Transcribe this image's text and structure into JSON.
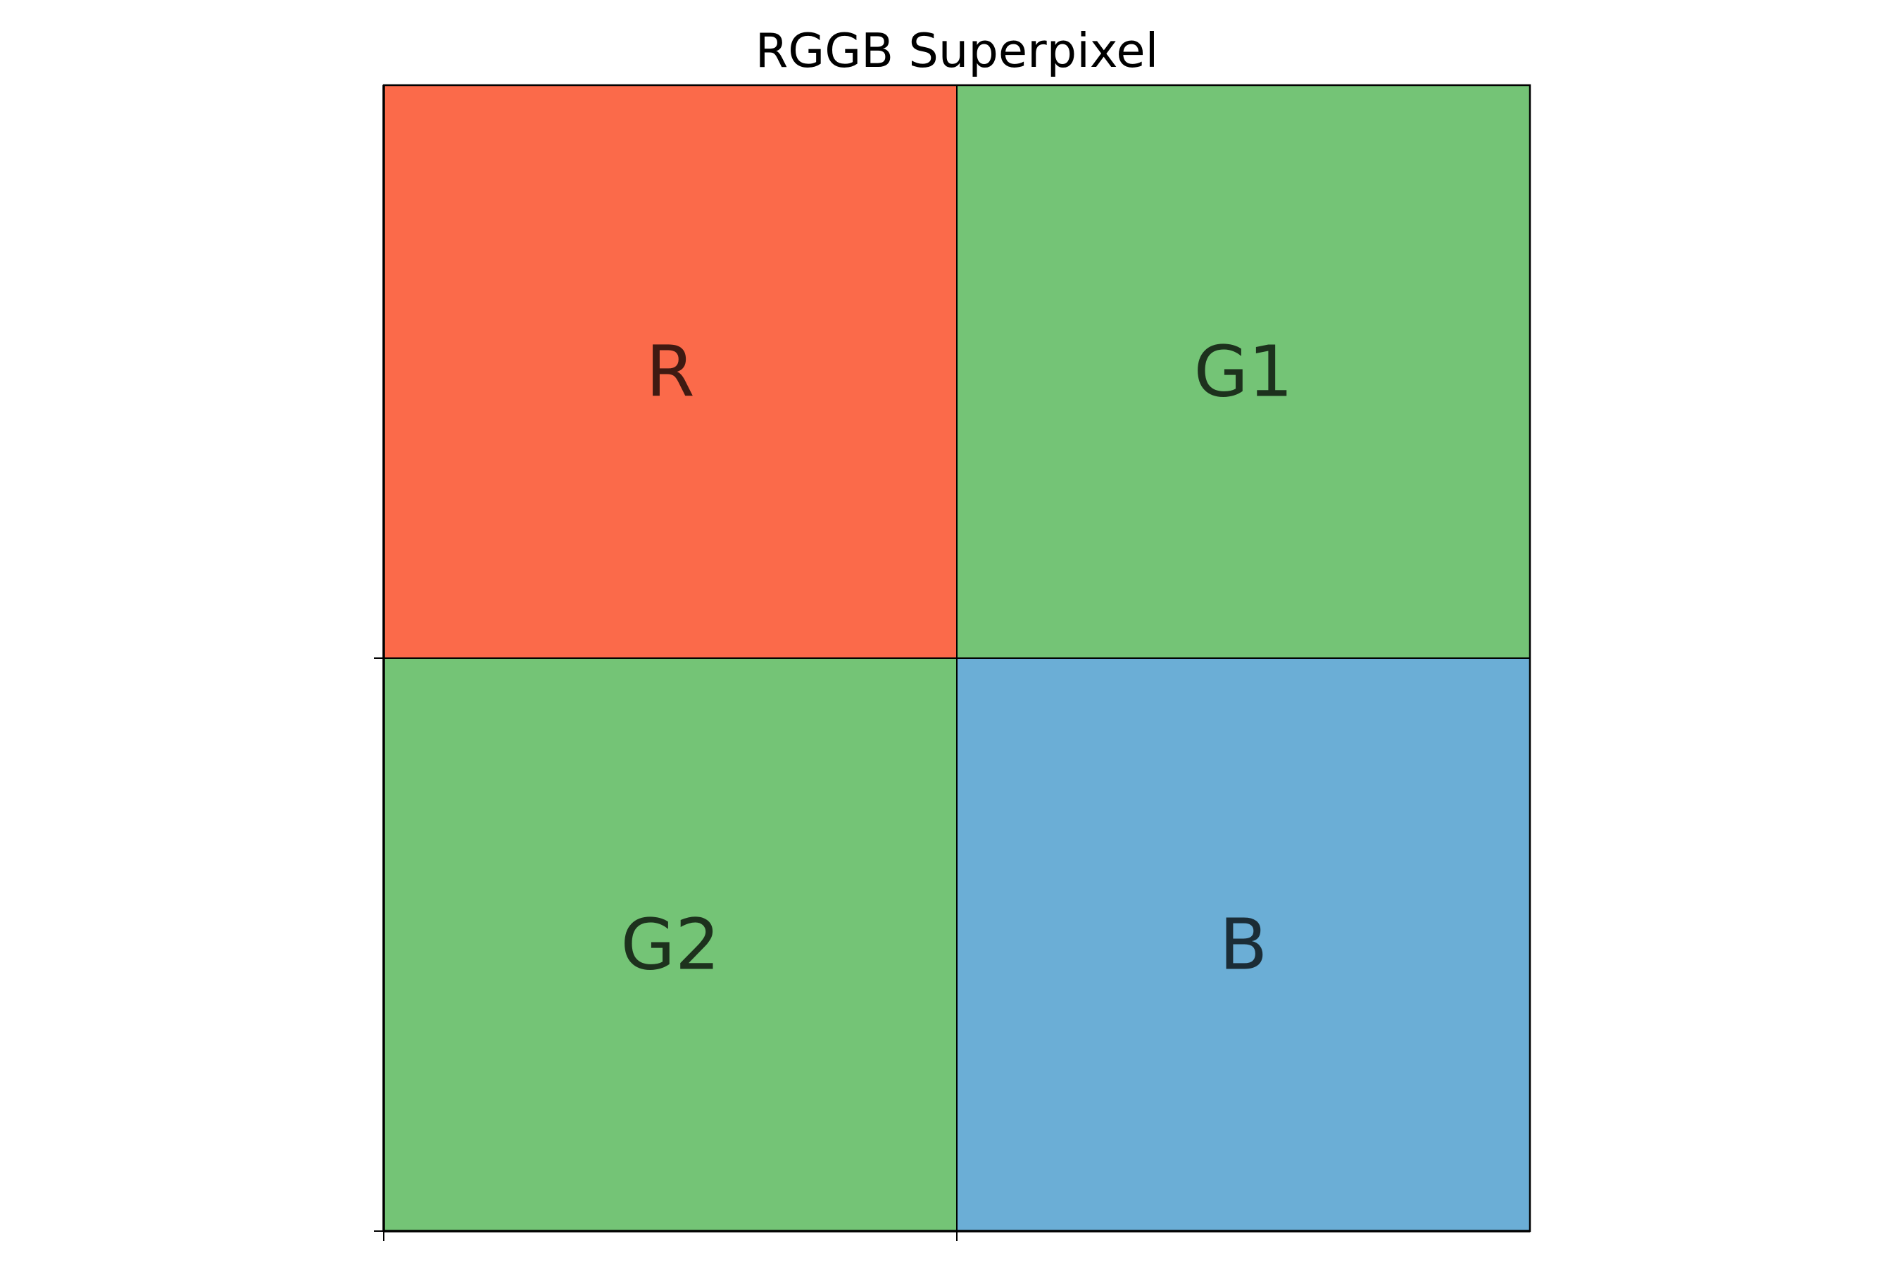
{
  "title": "RGGB Superpixel",
  "grid": {
    "rows": 2,
    "cols": 2,
    "cells": [
      {
        "row": 0,
        "col": 0,
        "label": "R",
        "color": "#fb6a4a"
      },
      {
        "row": 0,
        "col": 1,
        "label": "G1",
        "color": "#74c476"
      },
      {
        "row": 1,
        "col": 0,
        "label": "G2",
        "color": "#74c476"
      },
      {
        "row": 1,
        "col": 1,
        "label": "B",
        "color": "#6baed6"
      }
    ]
  },
  "colors": {
    "edge": "#000000",
    "background": "#ffffff"
  }
}
